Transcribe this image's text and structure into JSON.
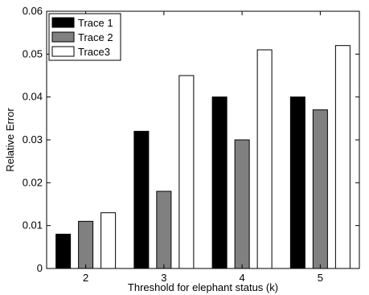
{
  "chart_data": {
    "type": "bar",
    "title": "",
    "xlabel": "Threshold for elephant status (k)",
    "ylabel": "Relative Error",
    "categories": [
      "2",
      "3",
      "4",
      "5"
    ],
    "ylim": [
      0,
      0.06
    ],
    "yticks": [
      "0",
      "0.01",
      "0.02",
      "0.03",
      "0.04",
      "0.05",
      "0.06"
    ],
    "grid": false,
    "legend_position": "top-left",
    "series": [
      {
        "name": "Trace 1",
        "color": "#000000",
        "values": [
          0.008,
          0.032,
          0.04,
          0.04
        ]
      },
      {
        "name": "Trace 2",
        "color": "#808080",
        "values": [
          0.011,
          0.018,
          0.03,
          0.037
        ]
      },
      {
        "name": "Trace3",
        "color": "#ffffff",
        "values": [
          0.013,
          0.045,
          0.051,
          0.052
        ]
      }
    ]
  }
}
